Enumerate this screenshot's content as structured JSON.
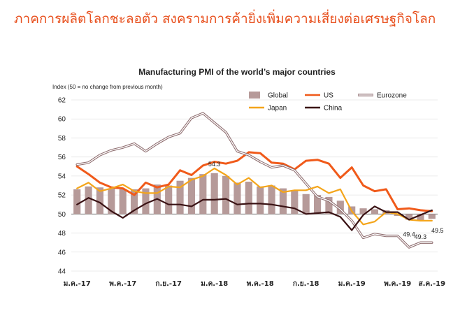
{
  "headline": "ภาคการผลิตโลกชะลอตัว สงครามการค้ายิ่งเพิ่มความเสี่ยงต่อเศรษฐกิจโลก",
  "chart_data": {
    "type": "bar+line",
    "title": "Manufacturing PMI of the world’s major countries",
    "ylabel": "Index (50 = no change from previous month)",
    "ylim": [
      44,
      62
    ],
    "yticks": [
      44,
      46,
      48,
      50,
      52,
      54,
      56,
      58,
      60,
      62
    ],
    "reference_line": 50,
    "x_labels": [
      "ม.ค.-17",
      "พ.ค.-17",
      "ก.ย.-17",
      "ม.ค.-18",
      "พ.ค.-18",
      "ก.ย.-18",
      "ม.ค.-19",
      "พ.ค.-19",
      "ส.ค.-19"
    ],
    "x_label_indices": [
      0,
      4,
      8,
      12,
      16,
      20,
      24,
      28,
      31
    ],
    "legend": [
      "Global",
      "US",
      "Eurozone",
      "Japan",
      "China"
    ],
    "series": [
      {
        "name": "Global",
        "type": "bar",
        "color": "#b69a99",
        "values": [
          52.6,
          52.9,
          52.8,
          52.7,
          52.6,
          52.6,
          52.7,
          53.1,
          53.0,
          53.5,
          53.8,
          54.2,
          54.3,
          54.0,
          53.3,
          53.4,
          52.9,
          53.0,
          52.7,
          52.5,
          52.1,
          52.0,
          51.8,
          51.4,
          50.8,
          50.6,
          50.5,
          50.4,
          49.8,
          49.4,
          49.3,
          49.5
        ]
      },
      {
        "name": "US",
        "type": "line",
        "color": "#f05a1a",
        "values": [
          55.0,
          54.2,
          53.3,
          52.8,
          52.7,
          52.0,
          53.3,
          52.8,
          53.1,
          54.6,
          54.1,
          55.1,
          55.5,
          55.3,
          55.6,
          56.5,
          56.4,
          55.4,
          55.3,
          54.7,
          55.6,
          55.7,
          55.3,
          53.8,
          54.9,
          53.0,
          52.4,
          52.6,
          50.5,
          50.6,
          50.4,
          50.3
        ]
      },
      {
        "name": "Eurozone",
        "type": "line",
        "color": "#8e6d6f",
        "values": [
          55.2,
          55.4,
          56.2,
          56.7,
          57.0,
          57.4,
          56.6,
          57.4,
          58.1,
          58.5,
          60.1,
          60.6,
          59.6,
          58.6,
          56.6,
          56.2,
          55.5,
          54.9,
          55.1,
          54.6,
          53.2,
          51.8,
          51.4,
          50.5,
          49.3,
          47.5,
          47.9,
          47.7,
          47.7,
          46.5,
          47.0,
          47.0
        ]
      },
      {
        "name": "Japan",
        "type": "line",
        "color": "#f4a51a",
        "values": [
          52.7,
          53.3,
          52.4,
          52.7,
          53.1,
          52.4,
          52.2,
          52.2,
          52.9,
          52.8,
          53.6,
          54.0,
          54.8,
          54.1,
          53.1,
          53.8,
          52.8,
          53.0,
          52.3,
          52.5,
          52.5,
          52.9,
          52.2,
          52.6,
          50.3,
          48.9,
          49.2,
          50.2,
          50.0,
          49.4,
          49.3,
          49.3
        ]
      },
      {
        "name": "China",
        "type": "line",
        "color": "#3a1214",
        "values": [
          51.0,
          51.7,
          51.2,
          50.3,
          49.6,
          50.4,
          51.1,
          51.6,
          51.0,
          51.0,
          50.8,
          51.5,
          51.5,
          51.6,
          51.0,
          51.1,
          51.1,
          51.0,
          50.8,
          50.6,
          50.0,
          50.1,
          50.2,
          49.7,
          48.3,
          49.9,
          50.8,
          50.2,
          50.2,
          49.4,
          49.9,
          50.4
        ]
      }
    ],
    "annotations": [
      {
        "text": "54.3",
        "series": "Global",
        "index": 12
      },
      {
        "text": "49.4",
        "series": "Global",
        "index": 29
      },
      {
        "text": "49.3",
        "series": "Global",
        "index": 30
      },
      {
        "text": "49.5",
        "series": "Global",
        "index": 31
      }
    ],
    "grid": true
  }
}
